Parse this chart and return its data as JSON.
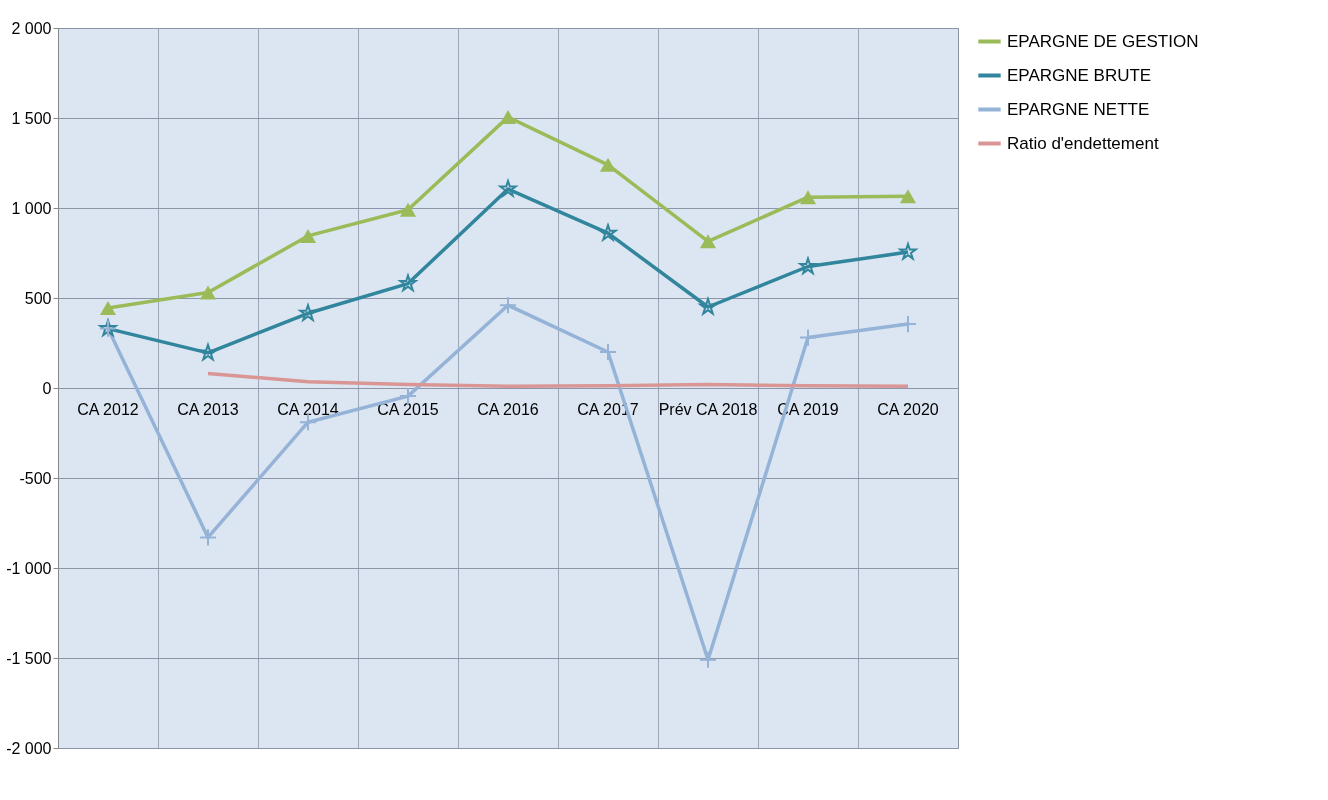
{
  "chart_data": {
    "type": "line",
    "categories": [
      "CA 2012",
      "CA 2013",
      "CA 2014",
      "CA 2015",
      "CA 2016",
      "CA 2017",
      "Prév CA 2018",
      "CA 2019",
      "CA 2020"
    ],
    "series": [
      {
        "name": "EPARGNE DE GESTION",
        "color": "#9bbb59",
        "marker": "triangle",
        "values": [
          445,
          530,
          845,
          990,
          1505,
          1240,
          815,
          1060,
          1065
        ]
      },
      {
        "name": "EPARGNE BRUTE",
        "color": "#31859c",
        "marker": "star",
        "values": [
          330,
          195,
          415,
          580,
          1105,
          860,
          450,
          675,
          755
        ]
      },
      {
        "name": "EPARGNE NETTE",
        "color": "#95b3d7",
        "marker": "cross",
        "values": [
          330,
          -830,
          -190,
          -45,
          460,
          200,
          -1510,
          280,
          355
        ]
      },
      {
        "name": "Ratio d'endettement",
        "color": "#d99694",
        "marker": "none",
        "values": [
          null,
          80,
          35,
          20,
          10,
          12,
          20,
          12,
          10
        ]
      }
    ],
    "ylim": [
      -2000,
      2000
    ],
    "yticks": [
      {
        "value": -2000,
        "label": "-2 000"
      },
      {
        "value": -1500,
        "label": "-1 500"
      },
      {
        "value": -1000,
        "label": "-1 000"
      },
      {
        "value": -500,
        "label": "-500"
      },
      0,
      500,
      {
        "value": 1000,
        "label": "1 000"
      },
      {
        "value": 1500,
        "label": "1 500"
      },
      {
        "value": 2000,
        "label": "2 000"
      }
    ],
    "grid": true,
    "legend": "right"
  }
}
